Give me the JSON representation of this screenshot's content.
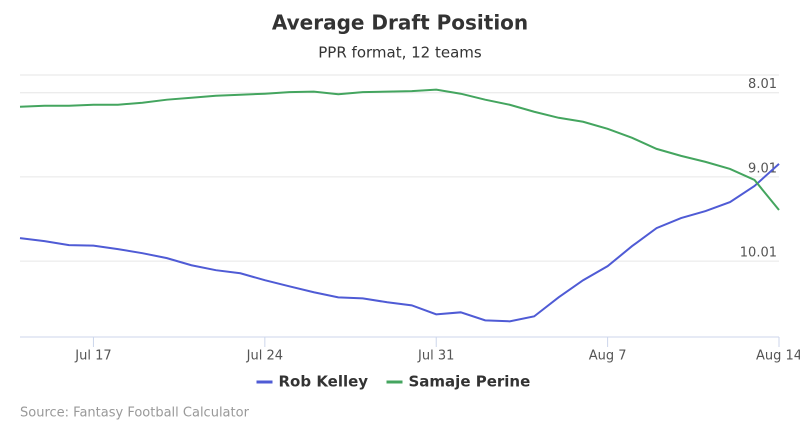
{
  "chart_data": {
    "type": "line",
    "title": "Average Draft Position",
    "subtitle": "PPR format, 12 teams",
    "source": "Source: Fantasy Football Calculator",
    "categories": [
      "Jul 14",
      "Jul 15",
      "Jul 16",
      "Jul 17",
      "Jul 18",
      "Jul 19",
      "Jul 20",
      "Jul 21",
      "Jul 22",
      "Jul 23",
      "Jul 24",
      "Jul 25",
      "Jul 26",
      "Jul 27",
      "Jul 28",
      "Jul 29",
      "Jul 30",
      "Jul 31",
      "Aug 1",
      "Aug 2",
      "Aug 3",
      "Aug 4",
      "Aug 5",
      "Aug 6",
      "Aug 7",
      "Aug 8",
      "Aug 9",
      "Aug 10",
      "Aug 11",
      "Aug 12",
      "Aug 13",
      "Aug 14"
    ],
    "xticks": [
      "Jul 17",
      "Jul 24",
      "Jul 31",
      "Aug 7",
      "Aug 14"
    ],
    "series": [
      {
        "name": "Rob Kelley",
        "color": "#4f5bd5",
        "values": [
          9.736,
          9.772,
          9.82,
          9.826,
          9.867,
          9.915,
          9.974,
          10.058,
          10.117,
          10.153,
          10.236,
          10.308,
          10.379,
          10.439,
          10.451,
          10.498,
          10.534,
          10.641,
          10.617,
          10.712,
          10.724,
          10.665,
          10.439,
          10.236,
          10.069,
          9.831,
          9.617,
          9.498,
          9.415,
          9.308,
          9.117,
          8.855
        ]
      },
      {
        "name": "Samaje Perine",
        "color": "#44a55f",
        "values": [
          8.177,
          8.165,
          8.165,
          8.153,
          8.153,
          8.129,
          8.093,
          8.07,
          8.046,
          8.034,
          8.022,
          8.004,
          7.998,
          8.028,
          8.004,
          7.998,
          7.992,
          7.974,
          8.022,
          8.093,
          8.153,
          8.236,
          8.308,
          8.355,
          8.439,
          8.546,
          8.677,
          8.76,
          8.831,
          8.915,
          9.046,
          9.403
        ]
      }
    ],
    "ylim": [
      7.8,
      10.91
    ],
    "y_reversed": true,
    "yticks": [
      8.01,
      9.01,
      10.01
    ],
    "grid": true,
    "legend": "bottom"
  }
}
